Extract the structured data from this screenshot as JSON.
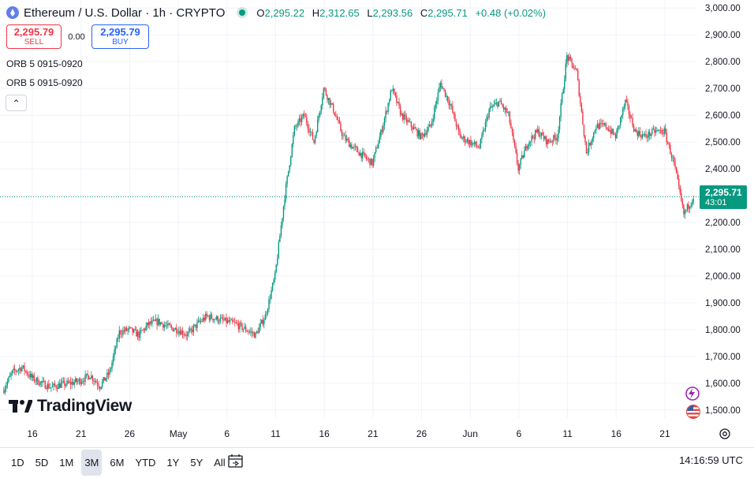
{
  "header": {
    "title": "Ethereum / U.S. Dollar · 1h · CRYPTO",
    "ohlc": [
      {
        "k": "O",
        "v": "2,295.22"
      },
      {
        "k": "H",
        "v": "2,312.65"
      },
      {
        "k": "L",
        "v": "2,293.56"
      },
      {
        "k": "C",
        "v": "2,295.71"
      }
    ],
    "change": "+0.48 (+0.02%)"
  },
  "trade": {
    "sell_price": "2,295.79",
    "sell_label": "SELL",
    "spread": "0.00",
    "buy_price": "2,295.79",
    "buy_label": "BUY"
  },
  "indicators": [
    "ORB 5 0915-0920",
    "ORB 5 0915-0920"
  ],
  "collapse_glyph": "⌃",
  "logo_text": "TradingView",
  "price_label": {
    "price": "2,295.71",
    "countdown": "43:01"
  },
  "range_buttons": [
    "1D",
    "5D",
    "1M",
    "3M",
    "6M",
    "YTD",
    "1Y",
    "5Y",
    "All"
  ],
  "range_active": "3M",
  "clock": "14:16:59 UTC",
  "colors": {
    "up": "#089981",
    "down": "#f23645",
    "grid": "#f0f3fa",
    "axis_text": "#131722"
  },
  "chart_data": {
    "type": "candlestick",
    "symbol": "ETHUSD",
    "interval": "1h",
    "y_ticks": [
      1500,
      1600,
      1700,
      1800,
      1900,
      2000,
      2100,
      2200,
      2300,
      2400,
      2500,
      2600,
      2700,
      2800,
      2900,
      3000
    ],
    "y_tick_labels": [
      "1,500.00",
      "1,600.00",
      "1,700.00",
      "1,800.00",
      "1,900.00",
      "2,000.00",
      "2,100.00",
      "2,200.00",
      "2,300.00",
      "2,400.00",
      "2,500.00",
      "2,600.00",
      "2,700.00",
      "2,800.00",
      "2,900.00",
      "3,000.00"
    ],
    "ylim": [
      1470,
      3030
    ],
    "x_tick_labels": [
      "16",
      "21",
      "26",
      "May",
      "6",
      "11",
      "16",
      "21",
      "26",
      "Jun",
      "6",
      "11",
      "16",
      "21"
    ],
    "x_tick_index": [
      3,
      8,
      13,
      18,
      23,
      28,
      33,
      38,
      43,
      48,
      53,
      58,
      63,
      68
    ],
    "x_count": 72,
    "current_price": 2295.71,
    "anchors": [
      [
        0,
        1570
      ],
      [
        1,
        1640
      ],
      [
        2,
        1660
      ],
      [
        3,
        1620
      ],
      [
        4,
        1600
      ],
      [
        5,
        1585
      ],
      [
        6,
        1595
      ],
      [
        7,
        1600
      ],
      [
        8,
        1610
      ],
      [
        9,
        1630
      ],
      [
        10,
        1590
      ],
      [
        11,
        1640
      ],
      [
        12,
        1790
      ],
      [
        13,
        1800
      ],
      [
        14,
        1780
      ],
      [
        15,
        1820
      ],
      [
        16,
        1830
      ],
      [
        17,
        1810
      ],
      [
        18,
        1800
      ],
      [
        19,
        1780
      ],
      [
        20,
        1820
      ],
      [
        21,
        1850
      ],
      [
        22,
        1840
      ],
      [
        23,
        1830
      ],
      [
        24,
        1820
      ],
      [
        25,
        1800
      ],
      [
        26,
        1780
      ],
      [
        27,
        1850
      ],
      [
        28,
        2000
      ],
      [
        29,
        2300
      ],
      [
        30,
        2550
      ],
      [
        31,
        2600
      ],
      [
        32,
        2500
      ],
      [
        33,
        2700
      ],
      [
        34,
        2620
      ],
      [
        35,
        2520
      ],
      [
        36,
        2480
      ],
      [
        37,
        2450
      ],
      [
        38,
        2420
      ],
      [
        39,
        2550
      ],
      [
        40,
        2700
      ],
      [
        41,
        2600
      ],
      [
        42,
        2560
      ],
      [
        43,
        2520
      ],
      [
        44,
        2560
      ],
      [
        45,
        2720
      ],
      [
        46,
        2640
      ],
      [
        47,
        2520
      ],
      [
        48,
        2500
      ],
      [
        49,
        2480
      ],
      [
        50,
        2620
      ],
      [
        51,
        2650
      ],
      [
        52,
        2600
      ],
      [
        53,
        2400
      ],
      [
        54,
        2500
      ],
      [
        55,
        2540
      ],
      [
        56,
        2500
      ],
      [
        57,
        2520
      ],
      [
        58,
        2820
      ],
      [
        59,
        2760
      ],
      [
        60,
        2460
      ],
      [
        61,
        2560
      ],
      [
        62,
        2560
      ],
      [
        63,
        2520
      ],
      [
        64,
        2650
      ],
      [
        65,
        2540
      ],
      [
        66,
        2520
      ],
      [
        67,
        2540
      ],
      [
        68,
        2540
      ],
      [
        69,
        2420
      ],
      [
        70,
        2230
      ],
      [
        71,
        2296
      ]
    ]
  }
}
